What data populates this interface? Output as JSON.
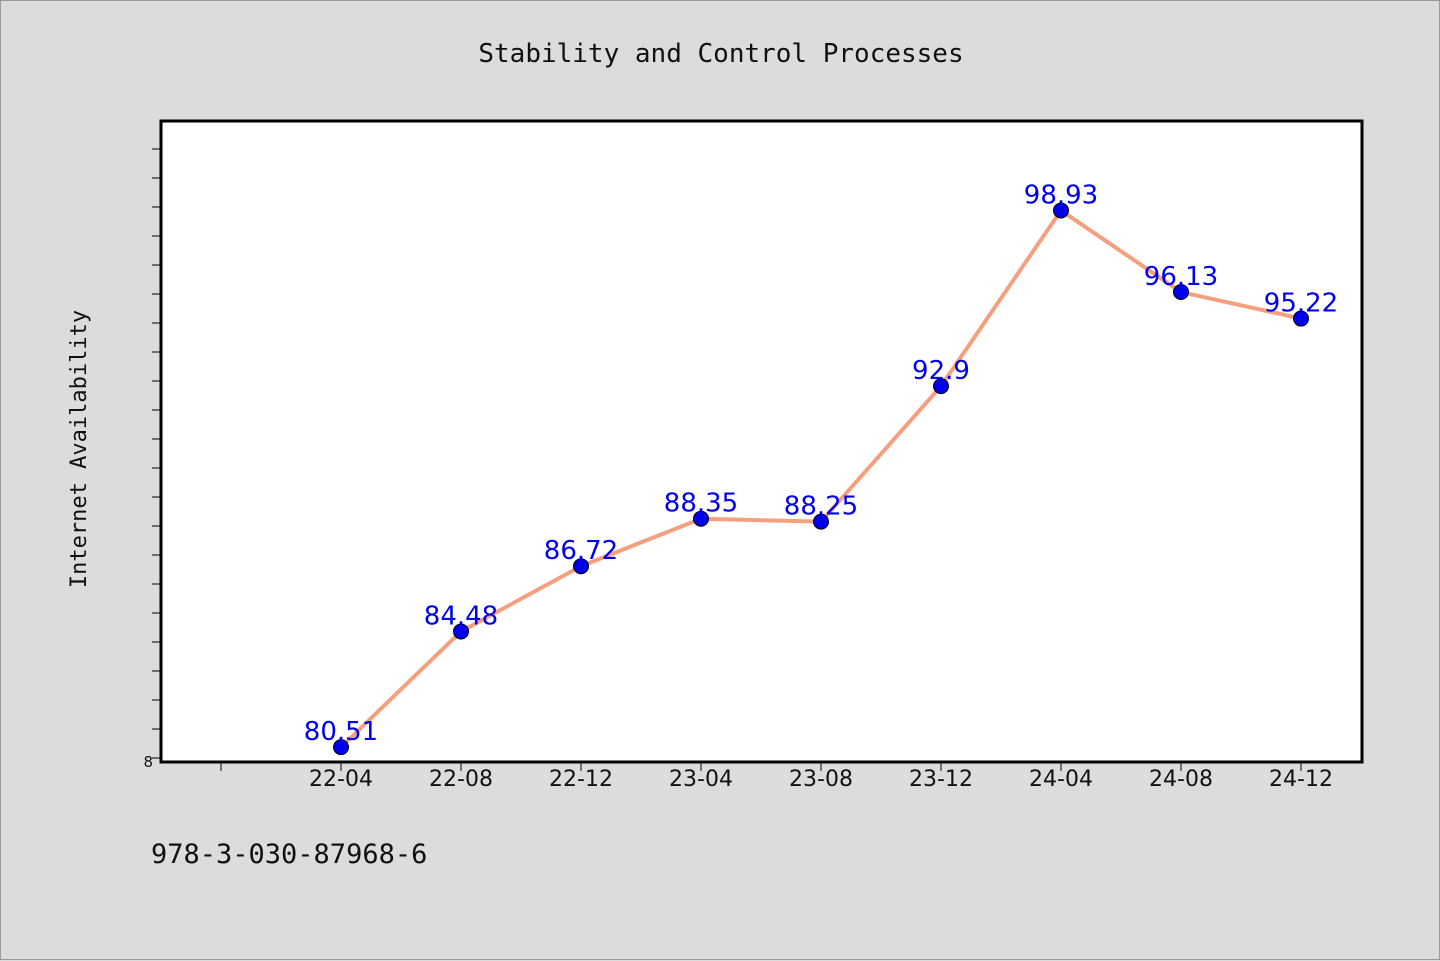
{
  "chart_data": {
    "type": "line",
    "title": "Stability and Control Processes",
    "xlabel": "",
    "ylabel": "Internet Availability",
    "categories": [
      "22-04",
      "22-08",
      "22-12",
      "23-04",
      "23-08",
      "23-12",
      "24-04",
      "24-08",
      "24-12"
    ],
    "series": [
      {
        "values": [
          80.51,
          84.48,
          86.72,
          88.35,
          88.25,
          92.9,
          98.93,
          96.13,
          95.22
        ],
        "data_labels": [
          "80.51",
          "84.48",
          "86.72",
          "88.35",
          "88.25",
          "92.9",
          "98.93",
          "96.13",
          "95.22"
        ]
      }
    ],
    "ylim": [
      80,
      102
    ],
    "y_tick_label": "8",
    "grid": false,
    "line_color": "#f4a07f",
    "marker_color": "#0000ee",
    "label_color": "#0000ee"
  },
  "footer": {
    "isbn": "978-3-030-87968-6"
  }
}
